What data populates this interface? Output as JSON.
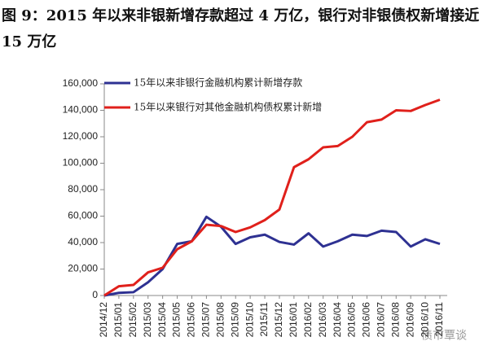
{
  "chart_data": {
    "type": "line",
    "title": "图 9：2015 年以来非银新增存款超过 4 万亿，银行对非银债权新增接近 15 万亿",
    "categories": [
      "2014/12",
      "2015/01",
      "2015/02",
      "2015/03",
      "2015/04",
      "2015/05",
      "2015/06",
      "2015/07",
      "2015/08",
      "2015/09",
      "2015/10",
      "2015/11",
      "2015/12",
      "2016/01",
      "2016/02",
      "2016/03",
      "2016/04",
      "2016/05",
      "2016/06",
      "2016/07",
      "2016/08",
      "2016/09",
      "2016/10",
      "2016/11"
    ],
    "series": [
      {
        "name": "15年以来非银行金融机构累计新增存款",
        "color": "#2e3192",
        "values": [
          0,
          2000,
          2500,
          10000,
          20000,
          39000,
          41000,
          59500,
          52000,
          39000,
          44000,
          46000,
          40500,
          38500,
          47000,
          37000,
          41000,
          46000,
          45000,
          49000,
          48000,
          37000,
          42500,
          39000
        ]
      },
      {
        "name": "15年以来银行对其他金融机构债权累计新增",
        "color": "#e0201b",
        "values": [
          0,
          7000,
          8000,
          17500,
          21000,
          35000,
          41000,
          53500,
          52500,
          48000,
          51500,
          57000,
          65000,
          97000,
          103000,
          112000,
          113000,
          120000,
          131000,
          133000,
          140000,
          139500,
          144000,
          148000
        ]
      }
    ],
    "ylim": [
      0,
      160000
    ],
    "yticks": [
      0,
      {
        "value": 20000,
        "label": "20,000"
      },
      {
        "value": 40000,
        "label": "40,000"
      },
      {
        "value": 60000,
        "label": "60,000"
      },
      {
        "value": 80000,
        "label": "80,000"
      },
      {
        "value": 100000,
        "label": "100,000"
      },
      {
        "value": 120000,
        "label": "120,000"
      },
      {
        "value": 140000,
        "label": "140,000"
      },
      {
        "value": 160000,
        "label": "160,000"
      }
    ],
    "grid": false,
    "legend": "top-left",
    "watermark": "债市覃谈"
  }
}
